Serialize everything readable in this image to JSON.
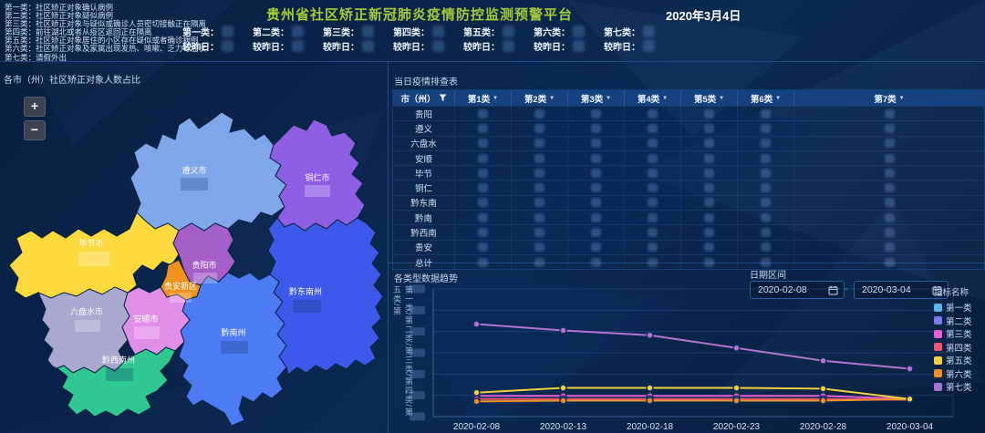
{
  "header": {
    "title": "贵州省社区矫正新冠肺炎疫情防控监测预警平台",
    "date": "2020年3月4日"
  },
  "category_notes": [
    "第一类：社区矫正对象确认病例",
    "第二类：社区矫正对象疑似病例",
    "第三类：社区矫正对象与疑似或确诊人员密切接触正在隔离",
    "第四类：前往湖北或者从疫区返回正在隔离",
    "第五类：社区矫正对象居住的小区存在疑似或者确诊病例",
    "第六类：社区矫正对象及家属出现发热、咳嗽、乏力等症状",
    "第七类：请假外出"
  ],
  "stats": {
    "delta_label": "较昨日：",
    "items": [
      {
        "label": "第一类："
      },
      {
        "label": "第二类："
      },
      {
        "label": "第三类："
      },
      {
        "label": "第四类："
      },
      {
        "label": "第五类："
      },
      {
        "label": "第六类："
      },
      {
        "label": "第七类："
      }
    ]
  },
  "map": {
    "title": "各市（州）社区矫正对象人数占比",
    "zoom_in_label": "+",
    "zoom_out_label": "−",
    "regions": [
      {
        "name": "遵义市",
        "color": "#7fa8ea"
      },
      {
        "name": "铜仁市",
        "color": "#8e5fe3"
      },
      {
        "name": "毕节市",
        "color": "#ffd83d"
      },
      {
        "name": "贵阳市",
        "color": "#a55fc9"
      },
      {
        "name": "贵安新区",
        "color": "#f0921e"
      },
      {
        "name": "六盘水市",
        "color": "#a9a9cf"
      },
      {
        "name": "安顺市",
        "color": "#e08fe8"
      },
      {
        "name": "黔西南州",
        "color": "#2ec893"
      },
      {
        "name": "黔南州",
        "color": "#4b7cf3"
      },
      {
        "name": "黔东南州",
        "color": "#3b5ae9"
      }
    ]
  },
  "table": {
    "title": "当日疫情排查表",
    "region_column": "市（州）",
    "category_columns": [
      "第1类",
      "第2类",
      "第3类",
      "第4类",
      "第5类",
      "第6类",
      "第7类"
    ],
    "rows": [
      "贵阳",
      "遵义",
      "六盘水",
      "安顺",
      "毕节",
      "铜仁",
      "黔东南",
      "黔南",
      "黔西南",
      "贵安",
      "总计"
    ]
  },
  "trend": {
    "title": "各类型数据趋势",
    "y_axis_label": "第一类/第二类/第三类/第四类/第五类/第",
    "date_range": {
      "label": "日期区间",
      "from": "2020-02-08",
      "separator": "-",
      "to": "2020-03-04"
    },
    "legend": {
      "title": "指标名称",
      "items": [
        {
          "label": "第一类",
          "color": "#59b6ec"
        },
        {
          "label": "第二类",
          "color": "#7d7bf2"
        },
        {
          "label": "第三类",
          "color": "#e55fd5"
        },
        {
          "label": "第四类",
          "color": "#ea5771"
        },
        {
          "label": "第五类",
          "color": "#f2d13d"
        },
        {
          "label": "第六类",
          "color": "#ef9126"
        },
        {
          "label": "第七类",
          "color": "#a871d6"
        }
      ]
    }
  },
  "chart_data": {
    "type": "line",
    "title": "各类型数据趋势",
    "x": [
      "2020-02-08",
      "2020-02-13",
      "2020-02-18",
      "2020-02-23",
      "2020-02-28",
      "2020-03-04"
    ],
    "series": [
      {
        "name": "第三类",
        "color": "#e55fd5",
        "values": [
          13,
          13,
          13,
          13,
          13,
          11
        ]
      },
      {
        "name": "第四类",
        "color": "#ea5771",
        "values": [
          11,
          11,
          11,
          11,
          11,
          10.5
        ]
      },
      {
        "name": "第六类",
        "color": "#ef9126",
        "values": [
          9.5,
          10,
          10,
          10,
          10,
          11
        ]
      },
      {
        "name": "第五类",
        "color": "#f2d13d",
        "values": [
          15,
          18,
          18,
          18,
          17.5,
          11
        ]
      },
      {
        "name": "第七类",
        "color": "#b273d2",
        "values": [
          58,
          54,
          51,
          43,
          35,
          30
        ]
      }
    ],
    "xlabel": "",
    "ylabel": "第一类/第二类/第三类/第四类/第五类/第",
    "ylim": [
      0,
      80
    ],
    "grid": true,
    "legend_position": "right",
    "legend": [
      "第一类",
      "第二类",
      "第三类",
      "第四类",
      "第五类",
      "第六类",
      "第七类"
    ],
    "y_tick_labels_visible": false
  }
}
